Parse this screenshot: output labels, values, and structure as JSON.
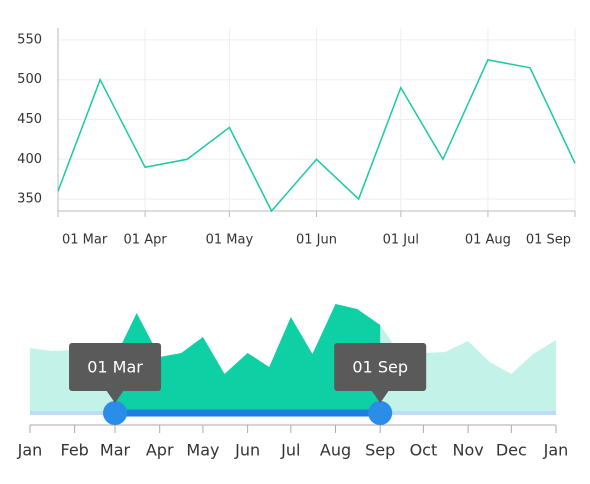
{
  "chart_data": [
    {
      "type": "line",
      "x": [
        60,
        75,
        91,
        106,
        121,
        136,
        152,
        167,
        182,
        197,
        213,
        228,
        244
      ],
      "series": [
        {
          "color": "#1ac9a5",
          "values": [
            360,
            500,
            390,
            400,
            440,
            335,
            400,
            350,
            490,
            400,
            525,
            515,
            395
          ]
        }
      ],
      "xlim": [
        60,
        244
      ],
      "xticks": [
        {
          "value": 60,
          "label": "01 Mar"
        },
        {
          "value": 91,
          "label": "01 Apr"
        },
        {
          "value": 121,
          "label": "01 May"
        },
        {
          "value": 152,
          "label": "01 Jun"
        },
        {
          "value": 182,
          "label": "01 Jul"
        },
        {
          "value": 213,
          "label": "01 Aug"
        },
        {
          "value": 244,
          "label": "01 Sep"
        }
      ],
      "ylim": [
        335,
        565
      ],
      "yticks": [
        350,
        400,
        450,
        500,
        550
      ],
      "grid": true
    },
    {
      "type": "area",
      "x": [
        1,
        16,
        32,
        47,
        60,
        75,
        91,
        106,
        121,
        136,
        152,
        167,
        182,
        197,
        213,
        228,
        244,
        259,
        274,
        289,
        305,
        320,
        335,
        350,
        366
      ],
      "series": [
        {
          "color": "#0fcfa5",
          "values": [
            65,
            62,
            63,
            62,
            55,
            100,
            56,
            60,
            76,
            39,
            60,
            46,
            96,
            59,
            109,
            104,
            88,
            57,
            60,
            61,
            72,
            51,
            39,
            59,
            73
          ]
        }
      ],
      "xlim": [
        1,
        366
      ],
      "ylim": [
        0,
        120
      ],
      "xticks": [
        {
          "value": 1,
          "label": "Jan"
        },
        {
          "value": 32,
          "label": "Feb"
        },
        {
          "value": 60,
          "label": "Mar"
        },
        {
          "value": 91,
          "label": "Apr"
        },
        {
          "value": 121,
          "label": "May"
        },
        {
          "value": 152,
          "label": "Jun"
        },
        {
          "value": 182,
          "label": "Jul"
        },
        {
          "value": 213,
          "label": "Aug"
        },
        {
          "value": 244,
          "label": "Sep"
        },
        {
          "value": 274,
          "label": "Oct"
        },
        {
          "value": 305,
          "label": "Nov"
        },
        {
          "value": 335,
          "label": "Dec"
        },
        {
          "value": 366,
          "label": "Jan"
        }
      ],
      "selected": [
        {
          "value": 60,
          "label": "01 Mar"
        },
        {
          "value": 244,
          "label": "01 Sep"
        }
      ]
    }
  ]
}
